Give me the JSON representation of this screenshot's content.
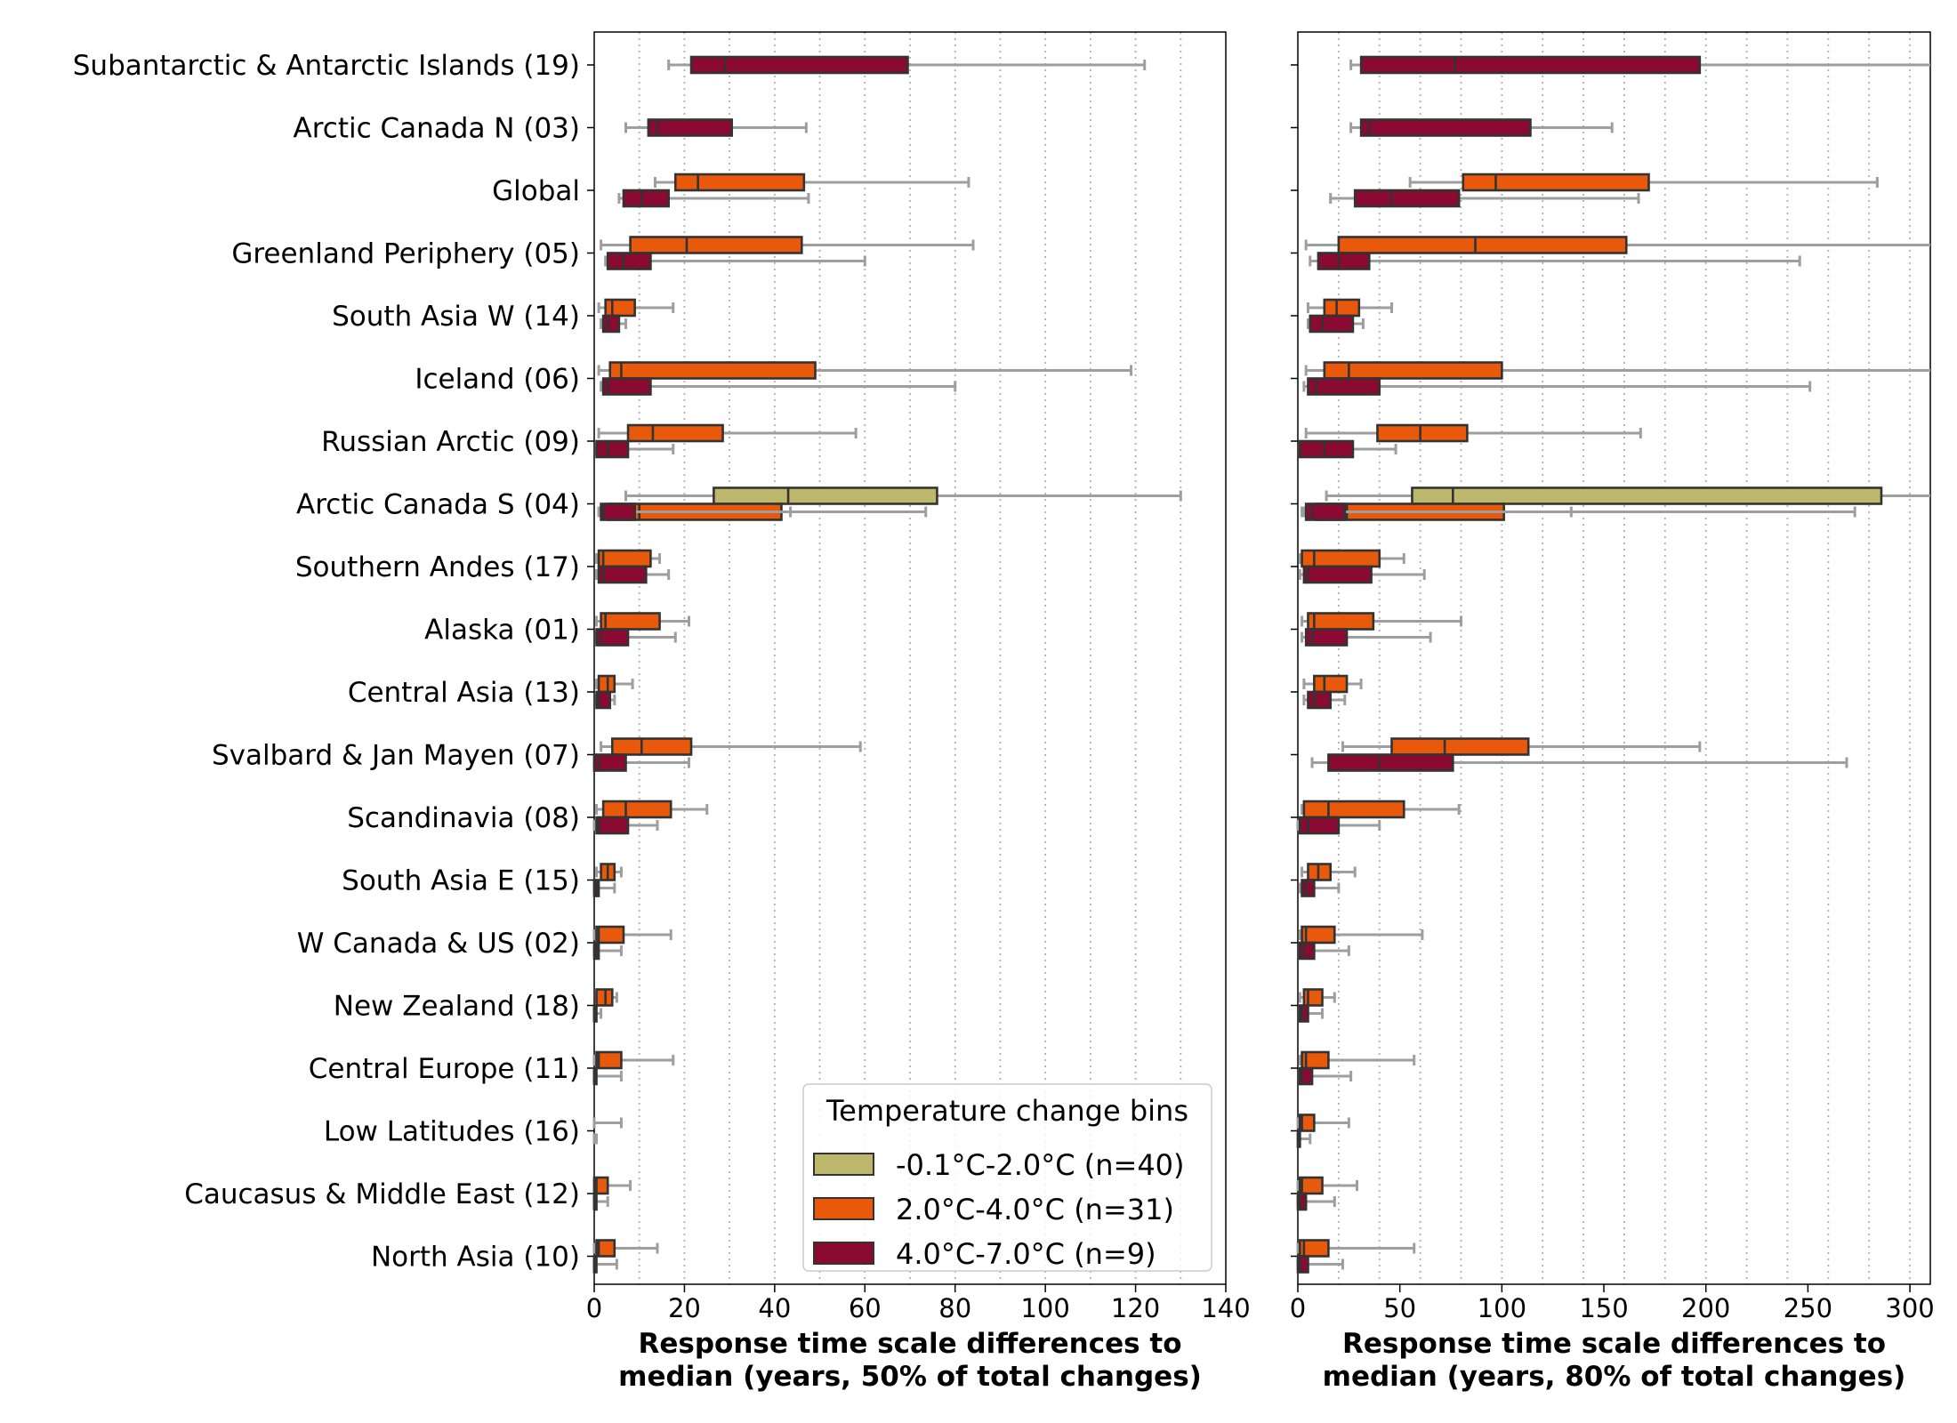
{
  "legend": {
    "title": "Temperature change bins",
    "entries": [
      {
        "label": "-0.1°C-2.0°C (n=40)",
        "color": "#bdb76b"
      },
      {
        "label": "2.0°C-4.0°C (n=31)",
        "color": "#e8590c"
      },
      {
        "label": "4.0°C-7.0°C (n=9)",
        "color": "#8b0a32"
      }
    ]
  },
  "colors": {
    "whisker": "#9e9e9e",
    "box_edge": "#333333",
    "grid": "#b0b0b0"
  },
  "chart_data": [
    {
      "type": "box",
      "orientation": "horizontal",
      "xlabel": "Response time scale differences to\nmedian (years, 50% of total changes)",
      "xlim": [
        0,
        140
      ],
      "xticks": [
        0,
        20,
        40,
        60,
        80,
        100,
        120,
        140
      ],
      "grid": "vertical dotted every 10",
      "categories": [
        "Subantarctic & Antarctic Islands (19)",
        "Arctic Canada N (03)",
        "Global",
        "Greenland Periphery (05)",
        "South Asia W (14)",
        "Iceland (06)",
        "Russian Arctic (09)",
        "Arctic Canada S (04)",
        "Southern Andes (17)",
        "Alaska (01)",
        "Central Asia (13)",
        "Svalbard & Jan Mayen (07)",
        "Scandinavia (08)",
        "South Asia E (15)",
        "W Canada & US (02)",
        "New Zealand (18)",
        "Central Europe (11)",
        "Low Latitudes (16)",
        "Caucasus & Middle East (12)",
        "North Asia (10)"
      ],
      "series": [
        {
          "name": "-0.1°C-2.0°C (n=40)",
          "boxes": [
            {
              "category": "Arctic Canada S (04)",
              "whislo": 7,
              "q1": 26.5,
              "med": 43,
              "q3": 76,
              "whishi": 130
            }
          ]
        },
        {
          "name": "2.0°C-4.0°C (n=31)",
          "boxes": [
            {
              "category": "Global",
              "whislo": 13.5,
              "q1": 18,
              "med": 23,
              "q3": 46.5,
              "whishi": 83
            },
            {
              "category": "Greenland Periphery (05)",
              "whislo": 1.5,
              "q1": 8,
              "med": 20.5,
              "q3": 46,
              "whishi": 84
            },
            {
              "category": "South Asia W (14)",
              "whislo": 1,
              "q1": 2.5,
              "med": 4,
              "q3": 9,
              "whishi": 17.5
            },
            {
              "category": "Iceland (06)",
              "whislo": 1,
              "q1": 3.5,
              "med": 6,
              "q3": 49,
              "whishi": 119
            },
            {
              "category": "Russian Arctic (09)",
              "whislo": 1,
              "q1": 7.5,
              "med": 13,
              "q3": 28.5,
              "whishi": 58
            },
            {
              "category": "Arctic Canada S (04)",
              "whislo": 1,
              "q1": 3,
              "med": 10,
              "q3": 41.5,
              "whishi": 73.5
            },
            {
              "category": "Southern Andes (17)",
              "whislo": 0.5,
              "q1": 1,
              "med": 2,
              "q3": 12.5,
              "whishi": 14.5
            },
            {
              "category": "Alaska (01)",
              "whislo": 0.5,
              "q1": 1.5,
              "med": 2.5,
              "q3": 14.5,
              "whishi": 21
            },
            {
              "category": "Central Asia (13)",
              "whislo": 0.5,
              "q1": 1,
              "med": 3,
              "q3": 4.5,
              "whishi": 8.5
            },
            {
              "category": "Svalbard & Jan Mayen (07)",
              "whislo": 1.5,
              "q1": 4,
              "med": 10.5,
              "q3": 21.5,
              "whishi": 59
            },
            {
              "category": "Scandinavia (08)",
              "whislo": 0.5,
              "q1": 2,
              "med": 7,
              "q3": 17,
              "whishi": 25
            },
            {
              "category": "South Asia E (15)",
              "whislo": 0.5,
              "q1": 1.5,
              "med": 3,
              "q3": 4.5,
              "whishi": 6
            },
            {
              "category": "W Canada & US (02)",
              "whislo": 0,
              "q1": 0.5,
              "med": 1,
              "q3": 6.5,
              "whishi": 17
            },
            {
              "category": "New Zealand (18)",
              "whislo": 0.5,
              "q1": 0.5,
              "med": 2.5,
              "q3": 4,
              "whishi": 5
            },
            {
              "category": "Central Europe (11)",
              "whislo": 0,
              "q1": 0.5,
              "med": 1,
              "q3": 6,
              "whishi": 17.5
            },
            {
              "category": "Low Latitudes (16)",
              "whislo": 0,
              "q1": 0,
              "med": 0,
              "q3": 0,
              "whishi": 6
            },
            {
              "category": "Caucasus & Middle East (12)",
              "whislo": 0,
              "q1": 0,
              "med": 0.5,
              "q3": 3,
              "whishi": 8
            },
            {
              "category": "North Asia (10)",
              "whislo": 0,
              "q1": 0.5,
              "med": 1,
              "q3": 4.5,
              "whishi": 14
            }
          ]
        },
        {
          "name": "4.0°C-7.0°C (n=9)",
          "boxes": [
            {
              "category": "Subantarctic & Antarctic Islands (19)",
              "whislo": 16.5,
              "q1": 21.5,
              "med": 29,
              "q3": 69.5,
              "whishi": 122
            },
            {
              "category": "Arctic Canada N (03)",
              "whislo": 7,
              "q1": 12,
              "med": 14,
              "q3": 30.5,
              "whishi": 47
            },
            {
              "category": "Global",
              "whislo": 5.5,
              "q1": 6.5,
              "med": 10.5,
              "q3": 16.5,
              "whishi": 47.5
            },
            {
              "category": "Greenland Periphery (05)",
              "whislo": 2.5,
              "q1": 3,
              "med": 6.5,
              "q3": 12.5,
              "whishi": 60
            },
            {
              "category": "South Asia W (14)",
              "whislo": 1.5,
              "q1": 2,
              "med": 3,
              "q3": 5.5,
              "whishi": 7
            },
            {
              "category": "Iceland (06)",
              "whislo": 1.5,
              "q1": 2,
              "med": 3,
              "q3": 12.5,
              "whishi": 80
            },
            {
              "category": "Russian Arctic (09)",
              "whislo": 0.5,
              "q1": 0.5,
              "med": 3,
              "q3": 7.5,
              "whishi": 17.5
            },
            {
              "category": "Arctic Canada S (04)",
              "whislo": 1,
              "q1": 1.5,
              "med": 2,
              "q3": 9,
              "whishi": 43.5
            },
            {
              "category": "Southern Andes (17)",
              "whislo": 0.5,
              "q1": 1,
              "med": 2,
              "q3": 11.5,
              "whishi": 16.5
            },
            {
              "category": "Alaska (01)",
              "whislo": 0.5,
              "q1": 0.5,
              "med": 1.5,
              "q3": 7.5,
              "whishi": 18
            },
            {
              "category": "Central Asia (13)",
              "whislo": 0.5,
              "q1": 0.5,
              "med": 1,
              "q3": 3.5,
              "whishi": 4.5
            },
            {
              "category": "Svalbard & Jan Mayen (07)",
              "whislo": 0,
              "q1": 0,
              "med": 1,
              "q3": 7,
              "whishi": 21
            },
            {
              "category": "Scandinavia (08)",
              "whislo": 0,
              "q1": 0.5,
              "med": 1,
              "q3": 7.5,
              "whishi": 14
            },
            {
              "category": "South Asia E (15)",
              "whislo": 0,
              "q1": 0,
              "med": 0.5,
              "q3": 1,
              "whishi": 4.5
            },
            {
              "category": "W Canada & US (02)",
              "whislo": 0,
              "q1": 0,
              "med": 0.5,
              "q3": 1,
              "whishi": 6
            },
            {
              "category": "New Zealand (18)",
              "whislo": 0,
              "q1": 0,
              "med": 0,
              "q3": 0.5,
              "whishi": 1.5
            },
            {
              "category": "Central Europe (11)",
              "whislo": 0,
              "q1": 0,
              "med": 0,
              "q3": 0.5,
              "whishi": 6
            },
            {
              "category": "Low Latitudes (16)",
              "whislo": 0,
              "q1": 0,
              "med": 0,
              "q3": 0,
              "whishi": 0.5
            },
            {
              "category": "Caucasus & Middle East (12)",
              "whislo": 0,
              "q1": 0,
              "med": 0,
              "q3": 0.5,
              "whishi": 3
            },
            {
              "category": "North Asia (10)",
              "whislo": 0,
              "q1": 0,
              "med": 0,
              "q3": 0.5,
              "whishi": 5
            }
          ]
        }
      ]
    },
    {
      "type": "box",
      "orientation": "horizontal",
      "xlabel": "Response time scale differences to\nmedian (years, 80% of total changes)",
      "xlim": [
        0,
        310
      ],
      "xticks": [
        0,
        50,
        100,
        150,
        200,
        250,
        300
      ],
      "grid": "vertical dotted every 20",
      "categories": [
        "Subantarctic & Antarctic Islands (19)",
        "Arctic Canada N (03)",
        "Global",
        "Greenland Periphery (05)",
        "South Asia W (14)",
        "Iceland (06)",
        "Russian Arctic (09)",
        "Arctic Canada S (04)",
        "Southern Andes (17)",
        "Alaska (01)",
        "Central Asia (13)",
        "Svalbard & Jan Mayen (07)",
        "Scandinavia (08)",
        "South Asia E (15)",
        "W Canada & US (02)",
        "New Zealand (18)",
        "Central Europe (11)",
        "Low Latitudes (16)",
        "Caucasus & Middle East (12)",
        "North Asia (10)"
      ],
      "series": [
        {
          "name": "-0.1°C-2.0°C (n=40)",
          "boxes": [
            {
              "category": "Arctic Canada S (04)",
              "whislo": 14,
              "q1": 56,
              "med": 76,
              "q3": 286,
              "whishi": 330
            }
          ]
        },
        {
          "name": "2.0°C-4.0°C (n=31)",
          "boxes": [
            {
              "category": "Global",
              "whislo": 55,
              "q1": 81,
              "med": 97,
              "q3": 172,
              "whishi": 284
            },
            {
              "category": "Greenland Periphery (05)",
              "whislo": 4,
              "q1": 20,
              "med": 87,
              "q3": 161,
              "whishi": 330
            },
            {
              "category": "South Asia W (14)",
              "whislo": 5,
              "q1": 13,
              "med": 19,
              "q3": 30,
              "whishi": 46
            },
            {
              "category": "Iceland (06)",
              "whislo": 4,
              "q1": 13,
              "med": 25,
              "q3": 100,
              "whishi": 330
            },
            {
              "category": "Russian Arctic (09)",
              "whislo": 4,
              "q1": 39,
              "med": 60,
              "q3": 83,
              "whishi": 168
            },
            {
              "category": "Arctic Canada S (04)",
              "whislo": 2,
              "q1": 9,
              "med": 24,
              "q3": 101,
              "whishi": 273
            },
            {
              "category": "Southern Andes (17)",
              "whislo": 1,
              "q1": 2,
              "med": 8,
              "q3": 40,
              "whishi": 52
            },
            {
              "category": "Alaska (01)",
              "whislo": 2,
              "q1": 5,
              "med": 8,
              "q3": 37,
              "whishi": 80
            },
            {
              "category": "Central Asia (13)",
              "whislo": 3,
              "q1": 8,
              "med": 13,
              "q3": 24,
              "whishi": 31
            },
            {
              "category": "Svalbard & Jan Mayen (07)",
              "whislo": 22,
              "q1": 46,
              "med": 72,
              "q3": 113,
              "whishi": 197
            },
            {
              "category": "Scandinavia (08)",
              "whislo": 2,
              "q1": 3,
              "med": 15,
              "q3": 52,
              "whishi": 79
            },
            {
              "category": "South Asia E (15)",
              "whislo": 2,
              "q1": 5,
              "med": 10,
              "q3": 16,
              "whishi": 28
            },
            {
              "category": "W Canada & US (02)",
              "whislo": 1,
              "q1": 2,
              "med": 4,
              "q3": 18,
              "whishi": 61
            },
            {
              "category": "New Zealand (18)",
              "whislo": 1,
              "q1": 3,
              "med": 5,
              "q3": 12,
              "whishi": 18
            },
            {
              "category": "Central Europe (11)",
              "whislo": 1,
              "q1": 2,
              "med": 4,
              "q3": 15,
              "whishi": 57
            },
            {
              "category": "Low Latitudes (16)",
              "whislo": 0,
              "q1": 1,
              "med": 2,
              "q3": 8,
              "whishi": 25
            },
            {
              "category": "Caucasus & Middle East (12)",
              "whislo": 0,
              "q1": 1,
              "med": 2,
              "q3": 12,
              "whishi": 29
            },
            {
              "category": "North Asia (10)",
              "whislo": 0,
              "q1": 1,
              "med": 3,
              "q3": 15,
              "whishi": 57
            }
          ]
        },
        {
          "name": "4.0°C-7.0°C (n=9)",
          "boxes": [
            {
              "category": "Subantarctic & Antarctic Islands (19)",
              "whislo": 26,
              "q1": 31,
              "med": 77,
              "q3": 197,
              "whishi": 330
            },
            {
              "category": "Arctic Canada N (03)",
              "whislo": 26,
              "q1": 31,
              "med": 35,
              "q3": 114,
              "whishi": 154
            },
            {
              "category": "Global",
              "whislo": 16,
              "q1": 28,
              "med": 46,
              "q3": 79,
              "whishi": 167
            },
            {
              "category": "Greenland Periphery (05)",
              "whislo": 6,
              "q1": 10,
              "med": 20,
              "q3": 35,
              "whishi": 246
            },
            {
              "category": "South Asia W (14)",
              "whislo": 5,
              "q1": 6,
              "med": 12,
              "q3": 27,
              "whishi": 32
            },
            {
              "category": "Iceland (06)",
              "whislo": 3,
              "q1": 5,
              "med": 9,
              "q3": 40,
              "whishi": 251
            },
            {
              "category": "Russian Arctic (09)",
              "whislo": 1,
              "q1": 1,
              "med": 13,
              "q3": 27,
              "whishi": 48
            },
            {
              "category": "Arctic Canada S (04)",
              "whislo": 3,
              "q1": 4,
              "med": 7,
              "q3": 23,
              "whishi": 134
            },
            {
              "category": "Southern Andes (17)",
              "whislo": 1,
              "q1": 3,
              "med": 5,
              "q3": 36,
              "whishi": 62
            },
            {
              "category": "Alaska (01)",
              "whislo": 2,
              "q1": 4,
              "med": 7,
              "q3": 24,
              "whishi": 65
            },
            {
              "category": "Central Asia (13)",
              "whislo": 3,
              "q1": 5,
              "med": 8,
              "q3": 16,
              "whishi": 23
            },
            {
              "category": "Svalbard & Jan Mayen (07)",
              "whislo": 7,
              "q1": 15,
              "med": 40,
              "q3": 76,
              "whishi": 269
            },
            {
              "category": "Scandinavia (08)",
              "whislo": 0,
              "q1": 1,
              "med": 5,
              "q3": 20,
              "whishi": 40
            },
            {
              "category": "South Asia E (15)",
              "whislo": 1,
              "q1": 2,
              "med": 4,
              "q3": 8,
              "whishi": 20
            },
            {
              "category": "W Canada & US (02)",
              "whislo": 1,
              "q1": 1,
              "med": 3,
              "q3": 8,
              "whishi": 25
            },
            {
              "category": "New Zealand (18)",
              "whislo": 1,
              "q1": 1,
              "med": 2,
              "q3": 5,
              "whishi": 12
            },
            {
              "category": "Central Europe (11)",
              "whislo": 1,
              "q1": 1,
              "med": 2,
              "q3": 7,
              "whishi": 26
            },
            {
              "category": "Low Latitudes (16)",
              "whislo": 0,
              "q1": 0,
              "med": 1,
              "q3": 1,
              "whishi": 6
            },
            {
              "category": "Caucasus & Middle East (12)",
              "whislo": 0,
              "q1": 0,
              "med": 1,
              "q3": 4,
              "whishi": 18
            },
            {
              "category": "North Asia (10)",
              "whislo": 0,
              "q1": 0,
              "med": 1,
              "q3": 5,
              "whishi": 22
            }
          ]
        }
      ]
    }
  ]
}
